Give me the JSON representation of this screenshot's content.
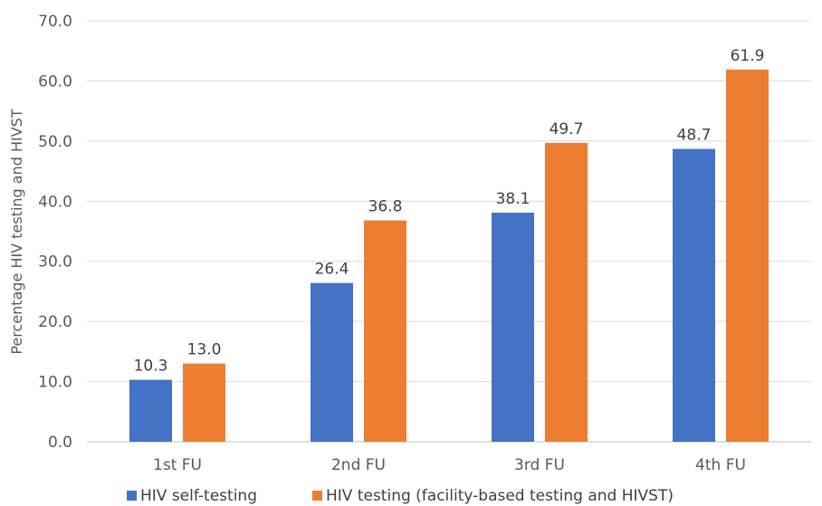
{
  "chart_data": {
    "type": "bar",
    "title": "",
    "xlabel": "",
    "ylabel": "Percentage HIV testing and HIVST",
    "categories": [
      "1st FU",
      "2nd FU",
      "3rd FU",
      "4th FU"
    ],
    "y_ticks": [
      "0.0",
      "10.0",
      "20.0",
      "30.0",
      "40.0",
      "50.0",
      "60.0",
      "70.0"
    ],
    "ylim": [
      0,
      70
    ],
    "grid": true,
    "legend_position": "bottom",
    "series": [
      {
        "name": "HIV self-testing",
        "color": "#4472c4",
        "values": [
          10.3,
          26.4,
          38.1,
          48.7
        ],
        "labels": [
          "10.3",
          "26.4",
          "38.1",
          "48.7"
        ]
      },
      {
        "name": "HIV testing (facility-based testing and HIVST)",
        "color": "#ed7d31",
        "values": [
          13.0,
          36.8,
          49.7,
          61.9
        ],
        "labels": [
          "13.0",
          "36.8",
          "49.7",
          "61.9"
        ]
      }
    ]
  }
}
